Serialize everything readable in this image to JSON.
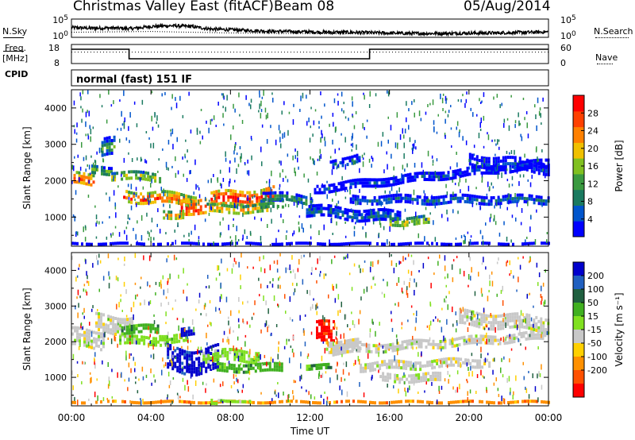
{
  "header": {
    "title": "Christmas Valley East (fitACF)",
    "beam": "Beam 08",
    "date": "05/Aug/2014"
  },
  "labels": {
    "nsky": "N.Sky",
    "nsearch": "N.Search",
    "freq_line1": "Freq.",
    "freq_line2": "[MHz]",
    "nave": "Nave",
    "cpid": "CPID",
    "program": "normal (fast) 151 IF"
  },
  "colors": {
    "power_scale": [
      "#0000ff",
      "#0055cc",
      "#1a7a60",
      "#3a9a40",
      "#80c020",
      "#f0c000",
      "#ff8000",
      "#ff4000",
      "#ff0000"
    ],
    "velocity_scale": [
      "#0000cc",
      "#2060c0",
      "#206040",
      "#40b020",
      "#80e020",
      "#c8c8c8",
      "#ffd000",
      "#ff9000",
      "#ff5000",
      "#ff0000"
    ]
  },
  "chart_data": [
    {
      "type": "line",
      "name": "noise-panel",
      "left_axis": {
        "ticks": [
          "10^5",
          "10^0"
        ]
      },
      "right_axis": {
        "ticks": [
          "10^5",
          "10^0"
        ]
      },
      "series": [
        {
          "name": "N.Sky",
          "style": "solid",
          "x": [
            0,
            1,
            2,
            3,
            4,
            5,
            6,
            7,
            8,
            9,
            10,
            11,
            12,
            13,
            14,
            15,
            16,
            17,
            18,
            19,
            20,
            21,
            22,
            23,
            24
          ],
          "y": [
            2.5,
            2.3,
            2.4,
            2.2,
            2.8,
            3.0,
            2.8,
            2.1,
            1.9,
            1.7,
            1.5,
            1.4,
            1.3,
            1.2,
            1.2,
            1.1,
            1.0,
            0.9,
            0.9,
            0.9,
            1.0,
            1.0,
            1.1,
            1.2,
            1.3
          ]
        },
        {
          "name": "N.Search",
          "style": "dotted",
          "x": [
            0,
            4,
            8,
            12,
            16,
            20,
            24
          ],
          "y": [
            1.4,
            1.6,
            1.2,
            1.0,
            0.9,
            0.9,
            1.1
          ]
        }
      ]
    },
    {
      "type": "line",
      "name": "freq-panel",
      "left_axis": {
        "ticks": [
          "18",
          "8"
        ]
      },
      "right_axis": {
        "ticks": [
          "60",
          "0"
        ]
      },
      "series": [
        {
          "name": "Freq",
          "style": "solid",
          "x": [
            0,
            2.9,
            2.9,
            15.0,
            15.0,
            24
          ],
          "y": [
            15.5,
            15.5,
            10.5,
            10.5,
            15.5,
            15.5
          ]
        },
        {
          "name": "Nave",
          "style": "dotted",
          "x": [
            0,
            24
          ],
          "y": [
            36,
            36
          ]
        }
      ]
    },
    {
      "type": "heatmap",
      "name": "power",
      "xlabel": "",
      "ylabel": "Slant Range [km]",
      "xlim": [
        0,
        24
      ],
      "ylim": [
        200,
        4500
      ],
      "x_ticks": [
        0,
        4,
        8,
        12,
        16,
        20,
        24
      ],
      "y_ticks": [
        1000,
        2000,
        3000,
        4000
      ],
      "colorbar": {
        "label": "Power [dB]",
        "ticks": [
          "4",
          "8",
          "12",
          "16",
          "20",
          "24",
          "28"
        ],
        "range": [
          0,
          32
        ]
      }
    },
    {
      "type": "heatmap",
      "name": "velocity",
      "xlabel": "Time UT",
      "ylabel": "Slant Range [km]",
      "xlim": [
        0,
        24
      ],
      "ylim": [
        200,
        4500
      ],
      "x_ticks": [
        0,
        4,
        8,
        12,
        16,
        20,
        24
      ],
      "x_tick_labels": [
        "00:00",
        "04:00",
        "08:00",
        "12:00",
        "16:00",
        "20:00",
        "00:00"
      ],
      "y_ticks": [
        1000,
        2000,
        3000,
        4000
      ],
      "colorbar": {
        "label": "Velocity [m s⁻¹]",
        "ticks": [
          "200",
          "100",
          "50",
          "15",
          "-15",
          "-50",
          "-100",
          "-200"
        ]
      }
    }
  ]
}
